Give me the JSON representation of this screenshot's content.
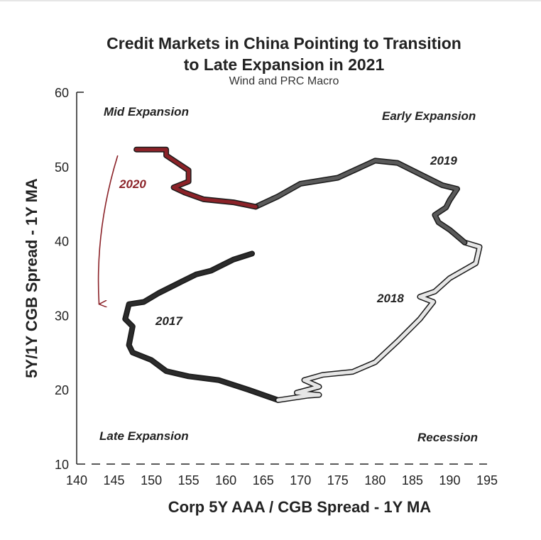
{
  "chart_data": {
    "type": "line",
    "title": "Credit Markets in China Pointing to Transition to Late Expansion in 2021",
    "title_lines": [
      "Credit Markets in China Pointing to Transition",
      "to Late Expansion in 2021"
    ],
    "subtitle": "Wind and PRC Macro",
    "xlabel": "Corp 5Y AAA / CGB Spread - 1Y MA",
    "ylabel": "5Y/1Y CGB Spread - 1Y MA",
    "xlim": [
      140,
      195
    ],
    "ylim": [
      10,
      60
    ],
    "x_ticks": [
      "140",
      "145",
      "150",
      "155",
      "160",
      "165",
      "170",
      "175",
      "180",
      "185",
      "190",
      "195"
    ],
    "y_ticks": [
      "10",
      "20",
      "30",
      "40",
      "50",
      "60"
    ],
    "regions": {
      "top_left": "Mid Expansion",
      "top_right": "Early Expansion",
      "bottom_left": "Late Expansion",
      "bottom_right": "Recession"
    },
    "series": [
      {
        "name": "2017",
        "color": "#2b2b2b",
        "points": [
          [
            163.5,
            38.3
          ],
          [
            161,
            37.5
          ],
          [
            160,
            37
          ],
          [
            158,
            36
          ],
          [
            156,
            35.5
          ],
          [
            154,
            34.5
          ],
          [
            151,
            33
          ],
          [
            149,
            31.8
          ],
          [
            147,
            31.5
          ],
          [
            146.5,
            29.5
          ],
          [
            147.5,
            28.5
          ],
          [
            147,
            26
          ],
          [
            147.5,
            25
          ],
          [
            150,
            24
          ],
          [
            152,
            22.5
          ],
          [
            155,
            21.8
          ],
          [
            159,
            21.3
          ],
          [
            163,
            20
          ],
          [
            167,
            18.6
          ]
        ]
      },
      {
        "name": "2018",
        "color": "#e6e6e6",
        "points": [
          [
            167,
            18.6
          ],
          [
            171,
            19.2
          ],
          [
            172.5,
            19.3
          ],
          [
            169.5,
            19.6
          ],
          [
            172.5,
            20.4
          ],
          [
            170.5,
            21.3
          ],
          [
            173,
            22
          ],
          [
            177,
            22.4
          ],
          [
            180,
            23.7
          ],
          [
            183,
            26.5
          ],
          [
            186,
            29.5
          ],
          [
            187.8,
            31.8
          ],
          [
            186,
            32.5
          ],
          [
            188,
            33.2
          ],
          [
            190,
            35
          ],
          [
            193.5,
            37
          ],
          [
            194,
            39.2
          ],
          [
            192,
            39.8
          ]
        ]
      },
      {
        "name": "2019",
        "color": "#5a5a5a",
        "points": [
          [
            192,
            39.8
          ],
          [
            190,
            41.5
          ],
          [
            188.5,
            42.5
          ],
          [
            188,
            43.5
          ],
          [
            189.5,
            44.5
          ],
          [
            190,
            45.5
          ],
          [
            191,
            47
          ],
          [
            189,
            47.5
          ],
          [
            186,
            49
          ],
          [
            183,
            50.5
          ],
          [
            180,
            50.8
          ],
          [
            175,
            48.5
          ],
          [
            170,
            47.7
          ],
          [
            167,
            46
          ],
          [
            164,
            44.6
          ]
        ]
      },
      {
        "name": "2020",
        "color": "#8b2228",
        "points": [
          [
            164,
            44.6
          ],
          [
            161,
            45.2
          ],
          [
            157,
            45.6
          ],
          [
            154.5,
            46.5
          ],
          [
            153,
            47.2
          ],
          [
            155,
            48
          ],
          [
            155,
            49.5
          ],
          [
            153.5,
            50.5
          ],
          [
            152,
            51.5
          ],
          [
            152,
            52.3
          ],
          [
            148,
            52.3
          ]
        ]
      }
    ],
    "annotations": {
      "label_2020": "2020",
      "label_2019": "2019",
      "label_2018": "2018",
      "label_2017": "2017",
      "arrow": {
        "from": [
          145.5,
          51.5
        ],
        "to": [
          143,
          31.5
        ],
        "color": "#8b2228"
      }
    }
  }
}
